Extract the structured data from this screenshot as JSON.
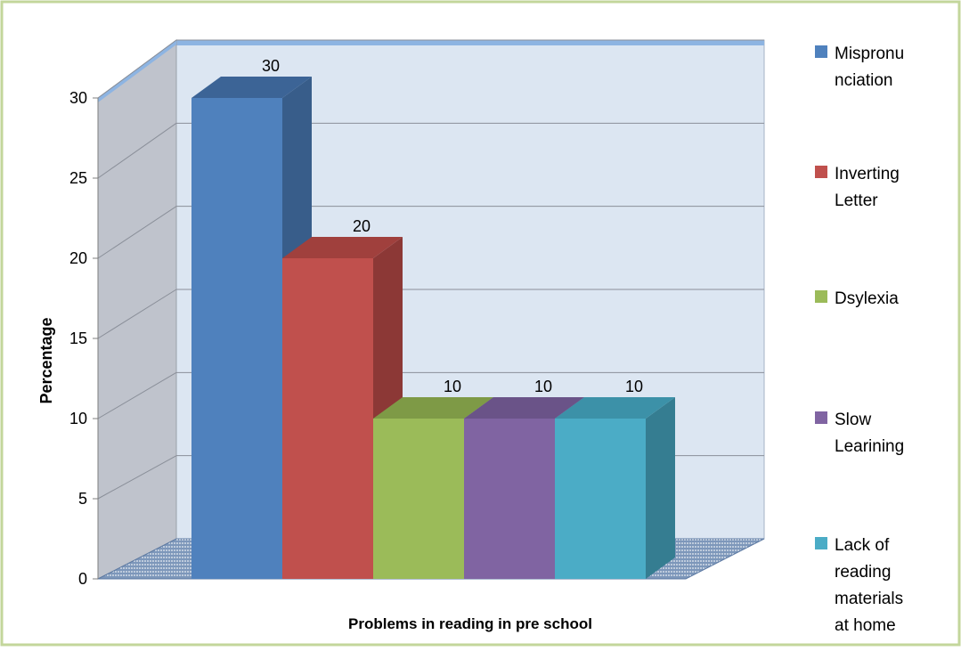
{
  "chart_data": {
    "type": "bar",
    "is3d": true,
    "categories": [
      "Mispronunciation",
      "Inverting Letter",
      "Dsylexia",
      "Slow Learining",
      "Lack of reading materials at home"
    ],
    "values": [
      30,
      20,
      10,
      10,
      10
    ],
    "data_labels": [
      "30",
      "20",
      "10",
      "10",
      "10"
    ],
    "xlabel": "Problems in reading in pre school",
    "ylabel": "Percentage",
    "ylim": [
      0,
      30
    ],
    "yticks": [
      0,
      5,
      10,
      15,
      20,
      25,
      30
    ],
    "grid": true,
    "legend": {
      "placement": "right",
      "entries": [
        {
          "lines": [
            "Mispronu",
            "nciation"
          ],
          "color": "#4F81BD"
        },
        {
          "lines": [
            "Inverting",
            "Letter"
          ],
          "color": "#C0504D"
        },
        {
          "lines": [
            "Dsylexia"
          ],
          "color": "#9BBB59"
        },
        {
          "lines": [
            "Slow",
            "Learining"
          ],
          "color": "#8064A2"
        },
        {
          "lines": [
            "Lack of",
            "reading",
            "materials",
            "at home"
          ],
          "color": "#4BACC6"
        }
      ]
    },
    "colors": {
      "bars": [
        "#4F81BD",
        "#C0504D",
        "#9BBB59",
        "#8064A2",
        "#4BACC6"
      ],
      "bars_side": [
        "#385D8A",
        "#8C3836",
        "#71893F",
        "#5C4776",
        "#357D91"
      ],
      "bars_top": [
        "#3C6496",
        "#A0403D",
        "#7E9A46",
        "#6A5388",
        "#3C91A8"
      ],
      "back_wall": "#DCE6F2",
      "side_wall": "#BFC3CC",
      "floor": "#6F8BB0",
      "frame_border": "#C3D69B"
    }
  }
}
